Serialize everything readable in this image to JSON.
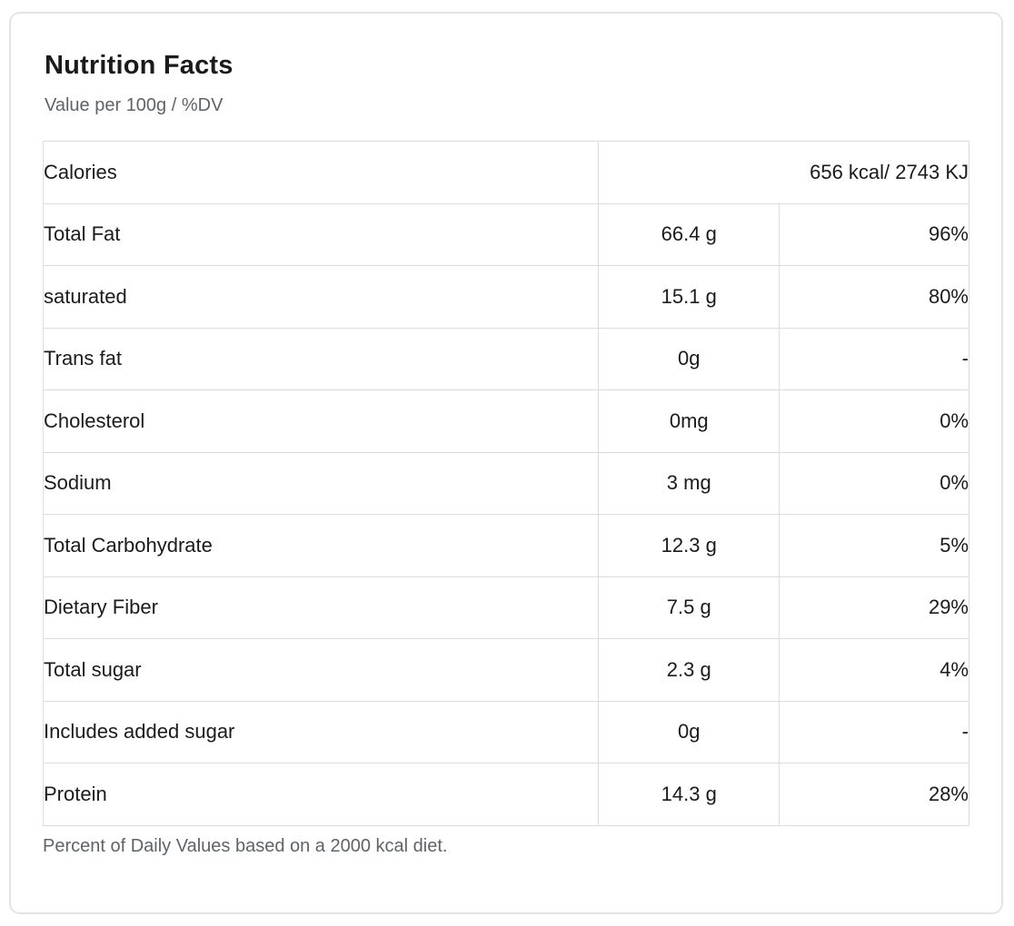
{
  "card": {
    "title": "Nutrition Facts",
    "subtitle": "Value per 100g / %DV",
    "footnote": "Percent of Daily Values based on a 2000 kcal diet."
  },
  "table": {
    "calories": {
      "label": "Calories",
      "value": "656 kcal/ 2743 KJ"
    },
    "rows": [
      {
        "label": "Total Fat",
        "value": "66.4 g",
        "dv": "96%"
      },
      {
        "label": "saturated",
        "value": "15.1 g",
        "dv": "80%"
      },
      {
        "label": "Trans fat",
        "value": "0g",
        "dv": "-"
      },
      {
        "label": "Cholesterol",
        "value": "0mg",
        "dv": "0%"
      },
      {
        "label": "Sodium",
        "value": "3 mg",
        "dv": "0%"
      },
      {
        "label": "Total Carbohydrate",
        "value": "12.3 g",
        "dv": "5%"
      },
      {
        "label": "Dietary Fiber",
        "value": "7.5 g",
        "dv": "29%"
      },
      {
        "label": "Total sugar",
        "value": "2.3 g",
        "dv": "4%"
      },
      {
        "label": "Includes added sugar",
        "value": "0g",
        "dv": "-"
      },
      {
        "label": "Protein",
        "value": "14.3 g",
        "dv": "28%"
      }
    ]
  },
  "colors": {
    "text_primary": "#1b1b1b",
    "text_secondary": "#5f6368",
    "border": "#dcdcdc",
    "card_border": "#e4e4e4",
    "background": "#ffffff"
  }
}
